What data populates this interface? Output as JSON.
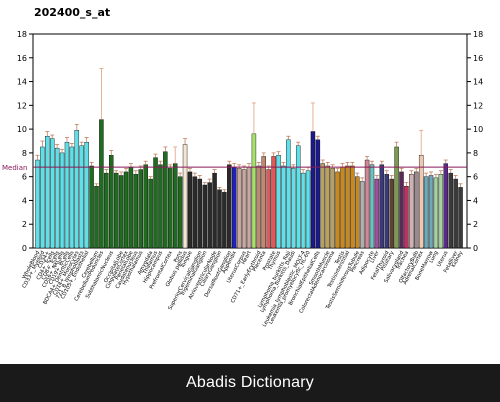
{
  "chart_data": {
    "type": "bar",
    "title": "202400_s_at",
    "ylim": [
      0,
      18
    ],
    "yticks": [
      0,
      2,
      4,
      6,
      8,
      10,
      12,
      14,
      16,
      18
    ],
    "median_label": "Median",
    "median_value": 6.8,
    "grid": false,
    "categories": [
      "WholeBlood",
      "CD33+_Myeloid",
      "CD34+",
      "CD4+_Tcells",
      "CD8+_Tcells",
      "CD56+_NKCells",
      "CD19+_BCells",
      "BDCA4+_DentriticCells",
      "CD14+_Monocytes",
      "721_B_lymphoblasts",
      "CD105+_Endothelial",
      "",
      "Cerebellum",
      "CerebellumPeduncles",
      "",
      "SubthalamicNucleus",
      "",
      "OccipitalLobe",
      "CingulateCortex",
      "ParietalLobe",
      "Caudatenucleus",
      "Hypothalamus",
      "",
      "Amygdala",
      "Thalamus",
      "Hippocampus",
      "",
      "PrefrontalCortex",
      "",
      "Pons",
      "Globus pallidus",
      "Tongue",
      "",
      "SuperiorCervicalGanglion",
      "TrigeminalGanglion",
      "",
      "AtrioventricularNode",
      "CiliaryGanglion",
      "",
      "DorsalRootGanglion",
      "Appendix",
      "",
      "UterusCorpus",
      "Heart",
      "",
      "CD71+_EarlyErythroid",
      "Placenta",
      "",
      "Prostate",
      "Thymus",
      "",
      "Lymphoma_burkitts_Raji",
      "Lymphoma_burkitts_Daudi",
      "",
      "Leukemia_lymphoblastic_MOLT-4",
      "Leukemia_promyelocytic_HL-60",
      "",
      "BronchialEpithelialCells",
      "",
      "SmoothMuscle",
      "ColorectalAdenocarcinoma",
      "",
      "Testis",
      "TestisInterstitial",
      "",
      "TestisSeminiferousTubule",
      "Pancreas",
      "",
      "Adipocyte",
      "Liver",
      "",
      "FetalThyroid",
      "Pituitary",
      "",
      "Salivarygland",
      "Trachea",
      "",
      "OlfactoryBulb",
      "AdrenalCortex",
      "",
      "BoneMarrow",
      "Lung",
      "",
      "Uterus",
      "",
      "Fetalliver",
      "Kidney"
    ],
    "series": [
      {
        "values": [
          7.4,
          8.5,
          9.4,
          9.2,
          8.4,
          8.0,
          8.9,
          8.5,
          9.9,
          8.6,
          8.9,
          6.9,
          5.2,
          10.8,
          6.3,
          7.8,
          6.3,
          6.1,
          6.4,
          6.8,
          6.2,
          6.6,
          7.0,
          5.8,
          7.6,
          7.0,
          8.1,
          6.7,
          7.1,
          6.0,
          8.7,
          6.4,
          6.0,
          5.8,
          5.3,
          5.5,
          6.3,
          4.9,
          4.7,
          7.0,
          6.8,
          6.7,
          6.6,
          6.8,
          9.6,
          6.9,
          7.7,
          6.6,
          7.7,
          7.8,
          6.9,
          9.1,
          6.7,
          8.6,
          6.3,
          6.5,
          9.8,
          9.1,
          7.1,
          6.9,
          6.7,
          6.4,
          6.8,
          6.9,
          6.9,
          6.0,
          5.6,
          7.4,
          7.0,
          5.8,
          7.0,
          6.2,
          5.8,
          8.5,
          6.4,
          5.2,
          6.2,
          6.4,
          7.8,
          6.0,
          6.1,
          5.9,
          6.2,
          7.1,
          6.3,
          5.8,
          5.1
        ],
        "errors": [
          0.4,
          0.5,
          0.4,
          0.3,
          0.3,
          0.3,
          0.4,
          0.3,
          0.5,
          0.3,
          0.4,
          0.3,
          0.2,
          4.3,
          0.3,
          0.4,
          0.2,
          0.3,
          0.3,
          0.3,
          0.3,
          0.3,
          0.3,
          0.2,
          0.3,
          0.3,
          0.4,
          0.3,
          1.4,
          0.3,
          0.5,
          0.3,
          0.3,
          0.3,
          0.2,
          0.3,
          0.3,
          0.2,
          0.2,
          0.3,
          0.3,
          0.3,
          0.3,
          0.3,
          2.6,
          0.3,
          0.3,
          0.3,
          0.3,
          0.3,
          0.3,
          0.3,
          0.3,
          0.3,
          0.3,
          0.3,
          2.4,
          0.3,
          0.3,
          0.3,
          0.3,
          0.3,
          0.3,
          0.3,
          0.3,
          0.3,
          0.3,
          0.3,
          0.3,
          0.3,
          0.3,
          0.3,
          0.3,
          0.4,
          0.3,
          0.3,
          0.3,
          0.3,
          2.1,
          0.3,
          0.3,
          0.3,
          0.3,
          0.3,
          0.3,
          0.3,
          0.3
        ],
        "colors": [
          "#5fe0e8",
          "#5fe0e8",
          "#5fe0e8",
          "#5fe0e8",
          "#5fe0e8",
          "#5fe0e8",
          "#5fe0e8",
          "#5fe0e8",
          "#5fe0e8",
          "#5fe0e8",
          "#5fe0e8",
          "#1f6b1f",
          "#1f6b1f",
          "#1f6b1f",
          "#1f6b1f",
          "#1f6b1f",
          "#1f6b1f",
          "#1f6b1f",
          "#1f6b1f",
          "#1f6b1f",
          "#1f6b1f",
          "#1f6b1f",
          "#1f6b1f",
          "#1f6b1f",
          "#1f6b1f",
          "#1f6b1f",
          "#1f6b1f",
          "#1f6b1f",
          "#1f6b1f",
          "#1f6b1f",
          "#f5e6d0",
          "#2a2a2a",
          "#2a2a2a",
          "#2a2a2a",
          "#2a2a2a",
          "#2a2a2a",
          "#2a2a2a",
          "#2a2a2a",
          "#2a2a2a",
          "#2a2a2a",
          "#2020c0",
          "#c8a8a0",
          "#c8a8a0",
          "#c8a8a0",
          "#a8e070",
          "#c08870",
          "#c08870",
          "#e05858",
          "#e05858",
          "#5fe0e8",
          "#5fe0e8",
          "#5fe0e8",
          "#5fe0e8",
          "#5fe0e8",
          "#5fe0e8",
          "#5fe0e8",
          "#1a1a8c",
          "#1a1a8c",
          "#b8a060",
          "#b8a060",
          "#b8a060",
          "#c8881c",
          "#c8881c",
          "#c8881c",
          "#c8881c",
          "#c8881c",
          "#b0b0b0",
          "#d08898",
          "#70c0c0",
          "#a050a0",
          "#3a3a7a",
          "#3a3a7a",
          "#604030",
          "#7a9a50",
          "#5a2a5a",
          "#c03060",
          "#d0b0b0",
          "#9a8a90",
          "#f0c8b0",
          "#70a8b8",
          "#70a8b8",
          "#a8d0a0",
          "#a8d0a0",
          "#5a2a8a",
          "#3a3a3a",
          "#3a3a3a",
          "#3a3a3a"
        ]
      }
    ]
  },
  "footer": {
    "text": "Abadis Dictionary"
  }
}
